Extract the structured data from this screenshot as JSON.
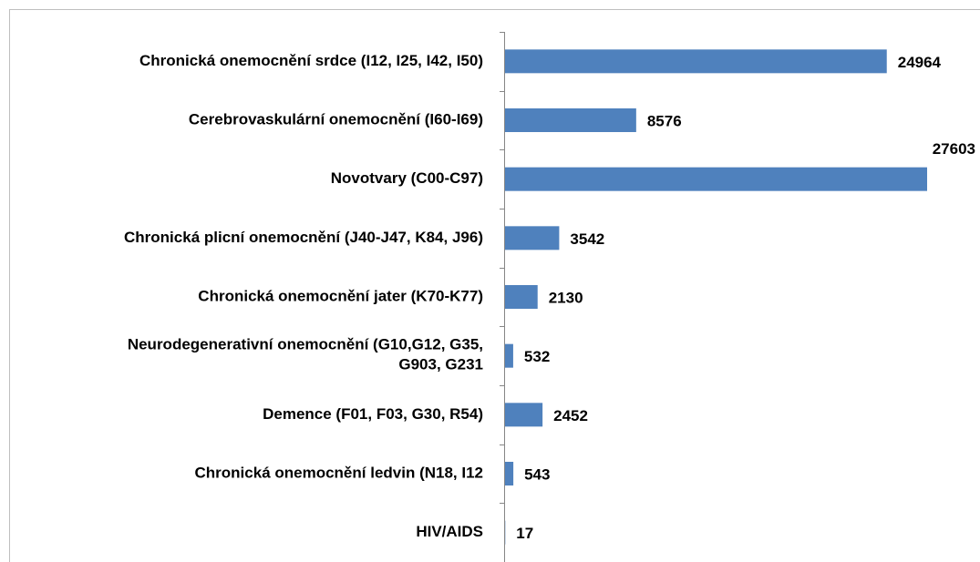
{
  "chart_data": {
    "type": "bar",
    "orientation": "horizontal",
    "categories": [
      "Chronická onemocnění srdce (I12, I25, I42, I50)",
      "Cerebrovaskulární onemocnění (I60-I69)",
      "Novotvary (C00-C97)",
      "Chronická plicní onemocnění (J40-J47, K84, J96)",
      "Chronická onemocnění jater (K70-K77)",
      "Neurodegenerativní onemocnění (G10,G12, G35,\nG903, G231",
      "Demence (F01, F03, G30, R54)",
      "Chronická onemocnění ledvin (N18, I12",
      "HIV/AIDS"
    ],
    "values": [
      24964,
      8576,
      27603,
      3542,
      2130,
      532,
      2452,
      543,
      17
    ],
    "color": "#4f81bd"
  }
}
